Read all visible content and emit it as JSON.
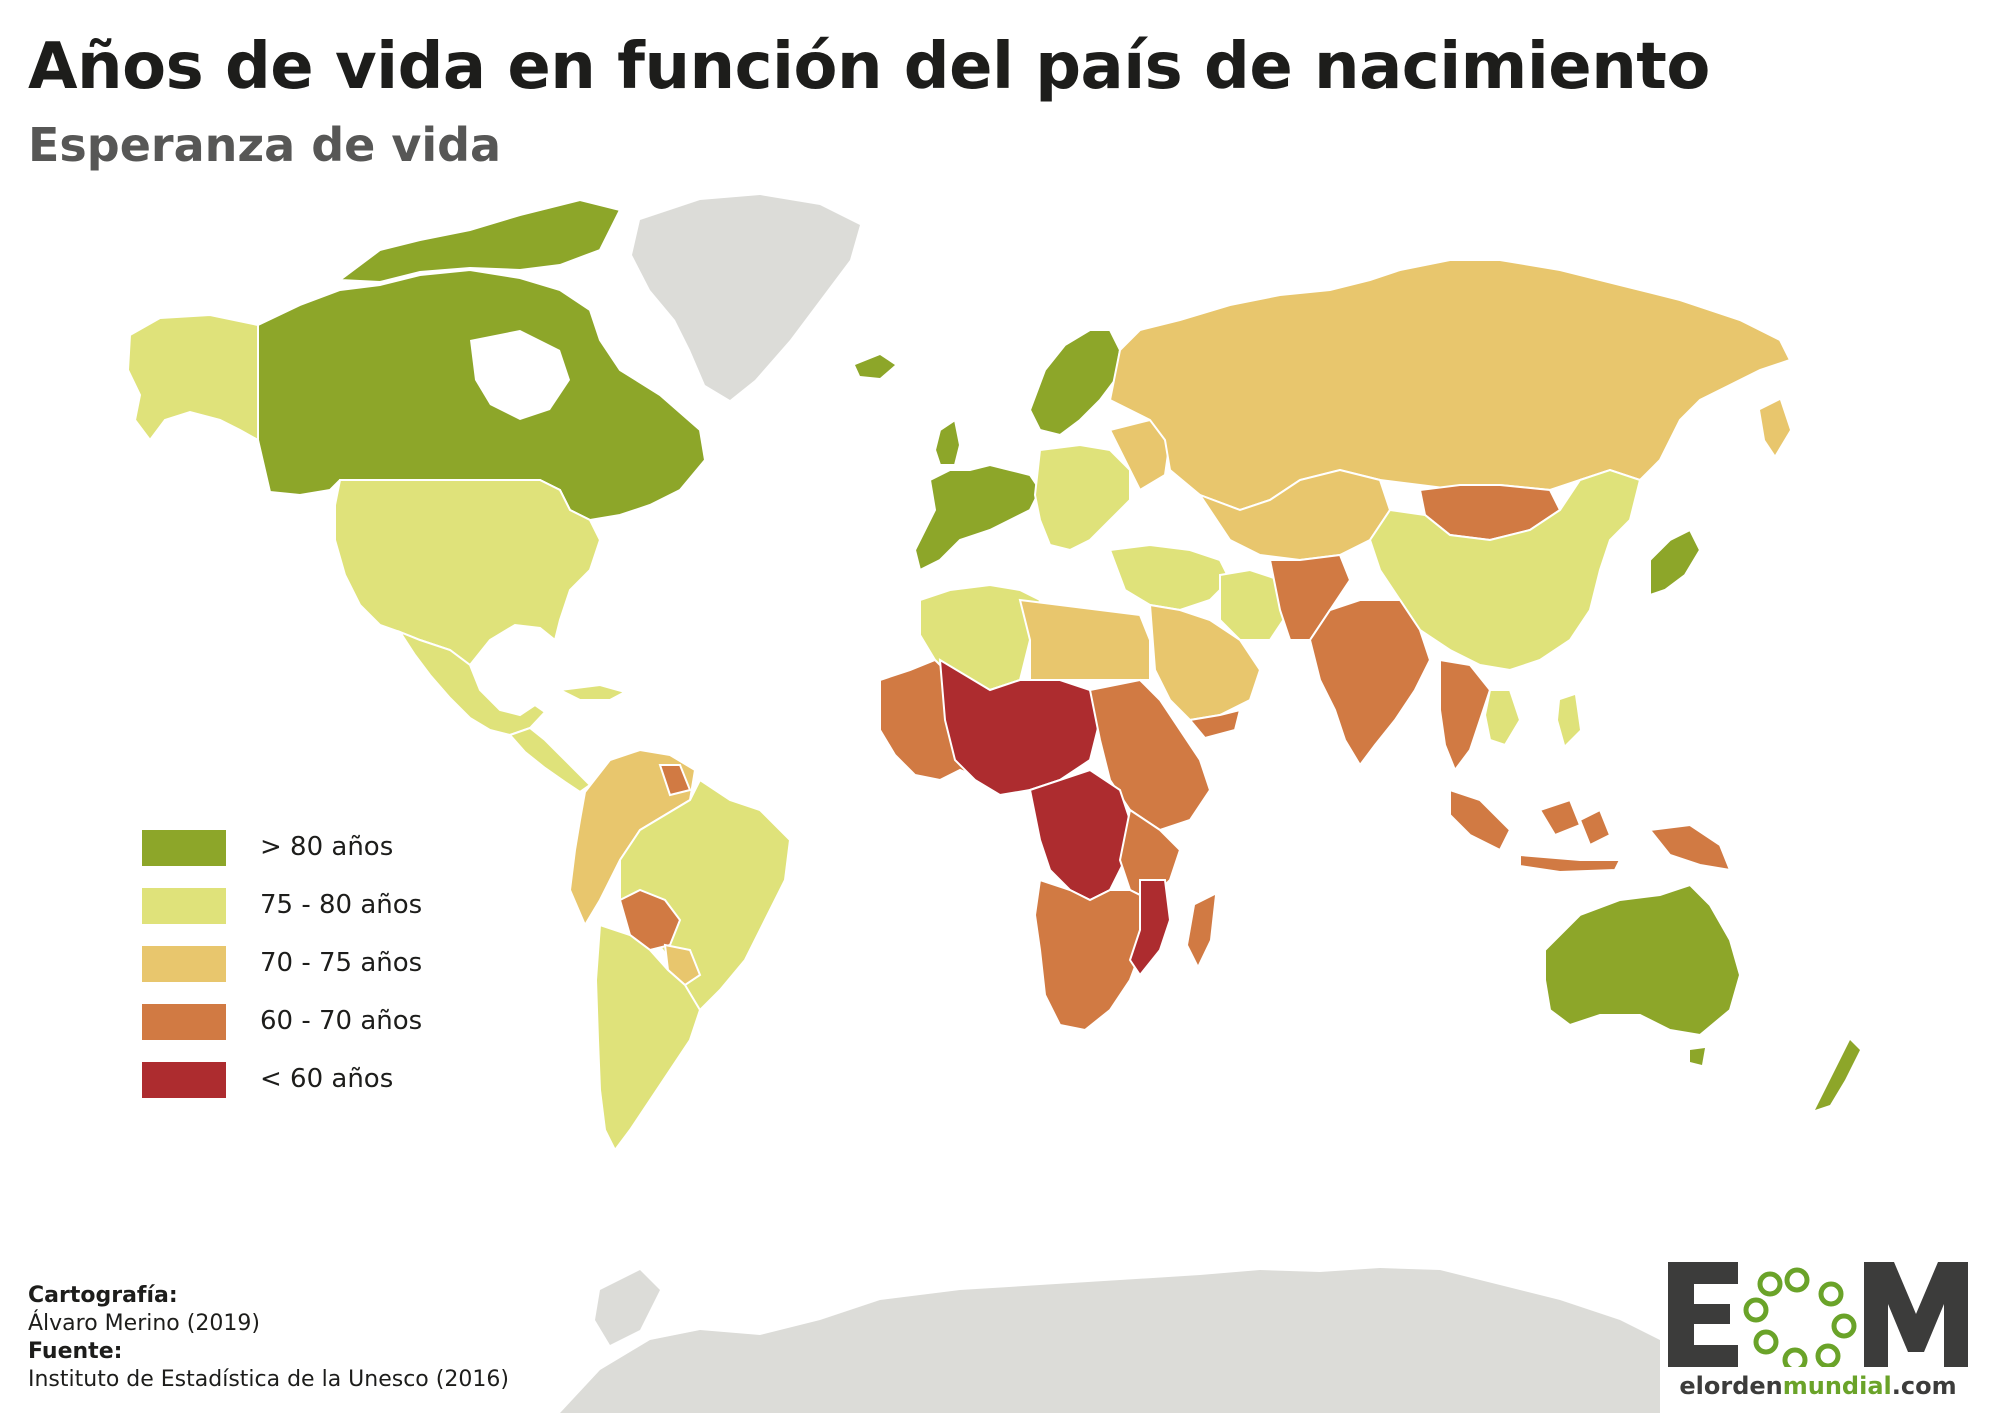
{
  "header": {
    "title": "Años de vida en función del país de nacimiento",
    "subtitle": "Esperanza de vida"
  },
  "colors": {
    "gt80": "#8da629",
    "c75_80": "#dfe27a",
    "c70_75": "#e8c66d",
    "c60_70": "#d17a43",
    "lt60": "#ad2c2f",
    "no_data": "#dcdcd8",
    "border": "#ffffff",
    "logo_dark": "#3c3c3b",
    "logo_green": "#6aa329"
  },
  "legend": {
    "items": [
      {
        "label": "> 80 años",
        "color": "#8da629"
      },
      {
        "label": "75 - 80 años",
        "color": "#dfe27a"
      },
      {
        "label": "70 - 75 años",
        "color": "#e8c66d"
      },
      {
        "label": "60 - 70 años",
        "color": "#d17a43"
      },
      {
        "label": "< 60 años",
        "color": "#ad2c2f"
      }
    ]
  },
  "credits": {
    "cartography_label": "Cartografía:",
    "cartography_value": "Álvaro Merino (2019)",
    "source_label": "Fuente:",
    "source_value": "Instituto de Estadística de la Unesco (2016)"
  },
  "logo": {
    "url_part1": "elorden",
    "url_part2": "mundial",
    "url_part3": ".com"
  }
}
